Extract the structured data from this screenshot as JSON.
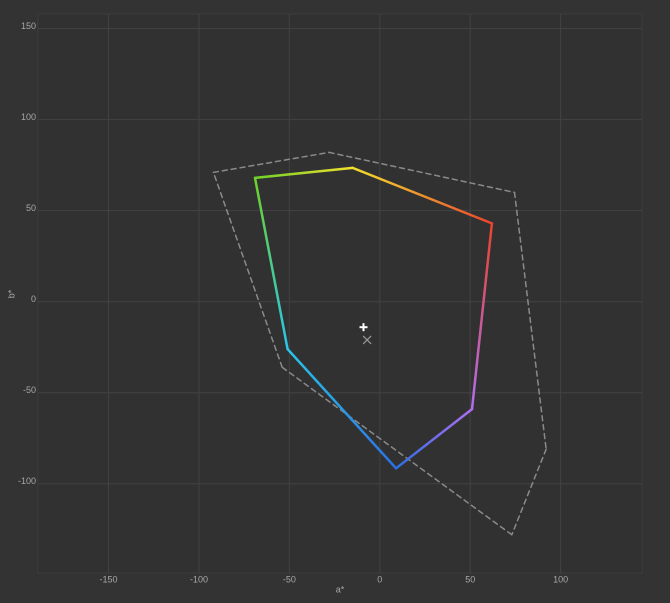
{
  "chart_data": {
    "type": "line",
    "x_label": "a*",
    "y_label": "b*",
    "xlim": [
      -189,
      145
    ],
    "ylim": [
      -149,
      158
    ],
    "xticks": [
      -150,
      -100,
      -50,
      0,
      50,
      100
    ],
    "yticks": [
      -100,
      -50,
      0,
      50,
      100,
      150
    ],
    "grid": true,
    "series": [
      {
        "x": [
          -92,
          -28,
          74.5,
          92,
          73,
          -54
        ],
        "values": [
          71,
          82,
          60,
          -81,
          -128,
          -36
        ],
        "color": "#8a8a8a",
        "dash": true,
        "closed": true
      },
      {
        "x": [
          -69,
          -15,
          62,
          51,
          9,
          -51
        ],
        "values": [
          68,
          73.5,
          43,
          -59,
          -91.5,
          -26
        ],
        "colors": [
          "#6fd12a",
          "#f3df2e",
          "#e8442f",
          "#b06ef0",
          "#2b6fe3",
          "#2ac5e8"
        ],
        "closed": true
      },
      {
        "x": [
          -9
        ],
        "values": [
          -14
        ],
        "color": "#ffffff",
        "marker": "plus"
      },
      {
        "x": [
          -7
        ],
        "values": [
          -21
        ],
        "color": "#999999",
        "marker": "cross"
      }
    ]
  }
}
